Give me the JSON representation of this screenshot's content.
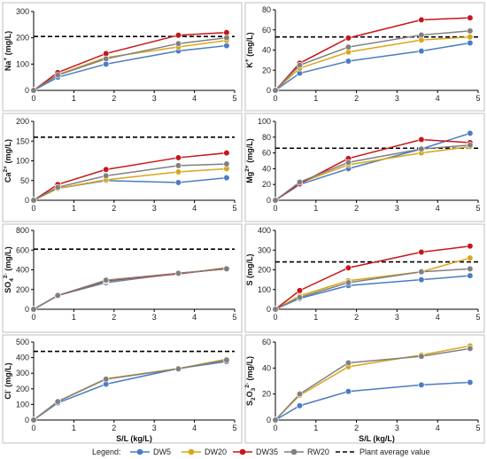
{
  "colors": {
    "DW5": "#4a7cc4",
    "DW20": "#d9a61c",
    "DW35": "#c8151b",
    "RW20": "#808080",
    "plant": "#000000",
    "frame": "#bfbfbf"
  },
  "legend": {
    "title": "Legend:",
    "items": [
      {
        "key": "DW5",
        "label": "DW5"
      },
      {
        "key": "DW20",
        "label": "DW20"
      },
      {
        "key": "DW35",
        "label": "DW35"
      },
      {
        "key": "RW20",
        "label": "RW20"
      },
      {
        "key": "plant",
        "label": "Plant average value"
      }
    ]
  },
  "chart_data": [
    {
      "id": "na",
      "type": "line",
      "ylabel": "Na+ (mg/L)",
      "ylabel_main": "Na",
      "ylabel_sup": "+",
      "ylabel_sub": "",
      "ylabel_unit": " (mg/L)",
      "xlabel": "",
      "xlim": [
        0,
        5
      ],
      "ylim": [
        0,
        300
      ],
      "xticks": [
        0,
        1,
        2,
        3,
        4,
        5
      ],
      "yticks": [
        0,
        100,
        200,
        300
      ],
      "plant_value": 205,
      "series": [
        {
          "name": "DW5",
          "x": [
            0,
            0.6,
            1.8,
            3.6,
            4.8
          ],
          "y": [
            0,
            50,
            100,
            150,
            170
          ]
        },
        {
          "name": "DW20",
          "x": [
            0,
            0.6,
            1.8,
            3.6,
            4.8
          ],
          "y": [
            0,
            60,
            125,
            165,
            190
          ]
        },
        {
          "name": "DW35",
          "x": [
            0,
            0.6,
            1.8,
            3.6,
            4.8
          ],
          "y": [
            0,
            68,
            140,
            210,
            220
          ]
        },
        {
          "name": "RW20",
          "x": [
            0,
            0.6,
            1.8,
            3.6,
            4.8
          ],
          "y": [
            0,
            58,
            120,
            178,
            200
          ]
        }
      ]
    },
    {
      "id": "k",
      "type": "line",
      "ylabel": "K+ (mg/L)",
      "ylabel_main": "K",
      "ylabel_sup": "+",
      "ylabel_sub": "",
      "ylabel_unit": " (mg/L)",
      "xlabel": "",
      "xlim": [
        0,
        5
      ],
      "ylim": [
        0,
        80
      ],
      "xticks": [
        0,
        1,
        2,
        3,
        4,
        5
      ],
      "yticks": [
        0,
        20,
        40,
        60,
        80
      ],
      "plant_value": 53,
      "series": [
        {
          "name": "DW5",
          "x": [
            0,
            0.6,
            1.8,
            3.6,
            4.8
          ],
          "y": [
            0,
            17,
            29,
            39,
            47
          ]
        },
        {
          "name": "DW20",
          "x": [
            0,
            0.6,
            1.8,
            3.6,
            4.8
          ],
          "y": [
            0,
            22,
            38,
            50,
            53
          ]
        },
        {
          "name": "DW35",
          "x": [
            0,
            0.6,
            1.8,
            3.6,
            4.8
          ],
          "y": [
            0,
            27,
            52,
            70,
            72
          ]
        },
        {
          "name": "RW20",
          "x": [
            0,
            0.6,
            1.8,
            3.6,
            4.8
          ],
          "y": [
            0,
            25,
            43,
            55,
            59
          ]
        }
      ]
    },
    {
      "id": "ca",
      "type": "line",
      "ylabel": "Ca2+ (mg/L)",
      "ylabel_main": "Ca",
      "ylabel_sup": "2+",
      "ylabel_sub": "",
      "ylabel_unit": " (mg/L)",
      "xlabel": "",
      "xlim": [
        0,
        5
      ],
      "ylim": [
        0,
        200
      ],
      "xticks": [
        0,
        1,
        2,
        3,
        4,
        5
      ],
      "yticks": [
        0,
        50,
        100,
        150,
        200
      ],
      "plant_value": 160,
      "series": [
        {
          "name": "DW5",
          "x": [
            0,
            0.6,
            1.8,
            3.6,
            4.8
          ],
          "y": [
            0,
            30,
            50,
            45,
            57
          ]
        },
        {
          "name": "DW20",
          "x": [
            0,
            0.6,
            1.8,
            3.6,
            4.8
          ],
          "y": [
            0,
            30,
            52,
            72,
            80
          ]
        },
        {
          "name": "DW35",
          "x": [
            0,
            0.6,
            1.8,
            3.6,
            4.8
          ],
          "y": [
            0,
            40,
            78,
            108,
            120
          ]
        },
        {
          "name": "RW20",
          "x": [
            0,
            0.6,
            1.8,
            3.6,
            4.8
          ],
          "y": [
            0,
            33,
            62,
            88,
            92
          ]
        }
      ]
    },
    {
      "id": "mg",
      "type": "line",
      "ylabel": "Mg2+ (mg/L)",
      "ylabel_main": "Mg",
      "ylabel_sup": "2+",
      "ylabel_sub": "",
      "ylabel_unit": " (mg/L)",
      "xlabel": "",
      "xlim": [
        0,
        5
      ],
      "ylim": [
        0,
        100
      ],
      "xticks": [
        0,
        1,
        2,
        3,
        4,
        5
      ],
      "yticks": [
        0,
        20,
        40,
        60,
        80,
        100
      ],
      "plant_value": 66,
      "series": [
        {
          "name": "DW5",
          "x": [
            0,
            0.6,
            1.8,
            3.6,
            4.8
          ],
          "y": [
            0,
            20,
            40,
            65,
            85
          ]
        },
        {
          "name": "DW20",
          "x": [
            0,
            0.6,
            1.8,
            3.6,
            4.8
          ],
          "y": [
            0,
            22,
            45,
            60,
            68
          ]
        },
        {
          "name": "DW35",
          "x": [
            0,
            0.6,
            1.8,
            3.6,
            4.8
          ],
          "y": [
            0,
            21,
            53,
            77,
            73
          ]
        },
        {
          "name": "RW20",
          "x": [
            0,
            0.6,
            1.8,
            3.6,
            4.8
          ],
          "y": [
            0,
            23,
            48,
            65,
            70
          ]
        }
      ]
    },
    {
      "id": "so4",
      "type": "line",
      "ylabel": "SO42- (mg/L)",
      "ylabel_main": "SO",
      "ylabel_sup": "2-",
      "ylabel_sub": "4",
      "ylabel_unit": " (mg/L)",
      "xlabel": "",
      "xlim": [
        0,
        5
      ],
      "ylim": [
        0,
        800
      ],
      "xticks": [
        0,
        1,
        2,
        3,
        4,
        5
      ],
      "yticks": [
        0,
        200,
        400,
        600,
        800
      ],
      "plant_value": 610,
      "series": [
        {
          "name": "DW5",
          "x": [
            0,
            0.6,
            1.8,
            3.6,
            4.8
          ],
          "y": [
            0,
            140,
            270,
            365,
            410
          ]
        },
        {
          "name": "DW20",
          "x": [
            0,
            0.6,
            1.8,
            3.6,
            4.8
          ],
          "y": [
            0,
            140,
            285,
            360,
            420
          ]
        },
        {
          "name": "DW35",
          "x": [
            0,
            0.6,
            1.8,
            3.6,
            4.8
          ],
          "y": [
            0,
            138,
            290,
            360,
            415
          ]
        },
        {
          "name": "RW20",
          "x": [
            0,
            0.6,
            1.8,
            3.6,
            4.8
          ],
          "y": [
            0,
            140,
            295,
            365,
            410
          ]
        }
      ]
    },
    {
      "id": "s",
      "type": "line",
      "ylabel": "S (mg/L)",
      "ylabel_main": "S",
      "ylabel_sup": "",
      "ylabel_sub": "",
      "ylabel_unit": " (mg/L)",
      "xlabel": "",
      "xlim": [
        0,
        5
      ],
      "ylim": [
        0,
        400
      ],
      "xticks": [
        0,
        1,
        2,
        3,
        4,
        5
      ],
      "yticks": [
        0,
        100,
        200,
        300,
        400
      ],
      "plant_value": 240,
      "series": [
        {
          "name": "DW5",
          "x": [
            0,
            0.6,
            1.8,
            3.6,
            4.8
          ],
          "y": [
            0,
            55,
            120,
            150,
            170
          ]
        },
        {
          "name": "DW20",
          "x": [
            0,
            0.6,
            1.8,
            3.6,
            4.8
          ],
          "y": [
            0,
            68,
            145,
            190,
            260
          ]
        },
        {
          "name": "DW35",
          "x": [
            0,
            0.6,
            1.8,
            3.6,
            4.8
          ],
          "y": [
            0,
            95,
            210,
            290,
            320
          ]
        },
        {
          "name": "RW20",
          "x": [
            0,
            0.6,
            1.8,
            3.6,
            4.8
          ],
          "y": [
            0,
            60,
            135,
            190,
            205
          ]
        }
      ]
    },
    {
      "id": "cl",
      "type": "line",
      "ylabel": "Cl- (mg/L)",
      "ylabel_main": "Cl",
      "ylabel_sup": "-",
      "ylabel_sub": "",
      "ylabel_unit": " (mg/L)",
      "xlabel": "S/L (kg/L)",
      "xlim": [
        0,
        5
      ],
      "ylim": [
        0,
        500
      ],
      "xticks": [
        0,
        1,
        2,
        3,
        4,
        5
      ],
      "yticks": [
        0,
        100,
        200,
        300,
        400,
        500
      ],
      "plant_value": 440,
      "series": [
        {
          "name": "DW5",
          "x": [
            0,
            0.6,
            1.8,
            3.6,
            4.8
          ],
          "y": [
            0,
            110,
            230,
            330,
            375
          ]
        },
        {
          "name": "DW20",
          "x": [
            0,
            0.6,
            1.8,
            3.6,
            4.8
          ],
          "y": [
            0,
            120,
            265,
            330,
            390
          ]
        },
        {
          "name": "RW20",
          "x": [
            0,
            0.6,
            1.8,
            3.6,
            4.8
          ],
          "y": [
            0,
            118,
            262,
            328,
            385
          ]
        }
      ]
    },
    {
      "id": "s2o3",
      "type": "line",
      "ylabel": "S2O32- (mg/L)",
      "ylabel_main": "S",
      "ylabel_sup": "",
      "ylabel_sub": "2",
      "ylabel_mid": "O",
      "ylabel_sub2": "3",
      "ylabel_sup2": "2-",
      "ylabel_unit": " (mg/L)",
      "xlabel": "S/L (kg/L)",
      "xlim": [
        0,
        5
      ],
      "ylim": [
        0,
        60
      ],
      "xticks": [
        0,
        1,
        2,
        3,
        4,
        5
      ],
      "yticks": [
        0,
        20,
        40,
        60
      ],
      "plant_value": null,
      "series": [
        {
          "name": "DW5",
          "x": [
            0,
            0.6,
            1.8,
            3.6,
            4.8
          ],
          "y": [
            0,
            11,
            22,
            27,
            29
          ]
        },
        {
          "name": "DW20",
          "x": [
            0,
            0.6,
            1.8,
            3.6,
            4.8
          ],
          "y": [
            0,
            19,
            41,
            50,
            57
          ]
        },
        {
          "name": "RW20",
          "x": [
            0,
            0.6,
            1.8,
            3.6,
            4.8
          ],
          "y": [
            0,
            20,
            44,
            49,
            55
          ]
        }
      ]
    }
  ]
}
